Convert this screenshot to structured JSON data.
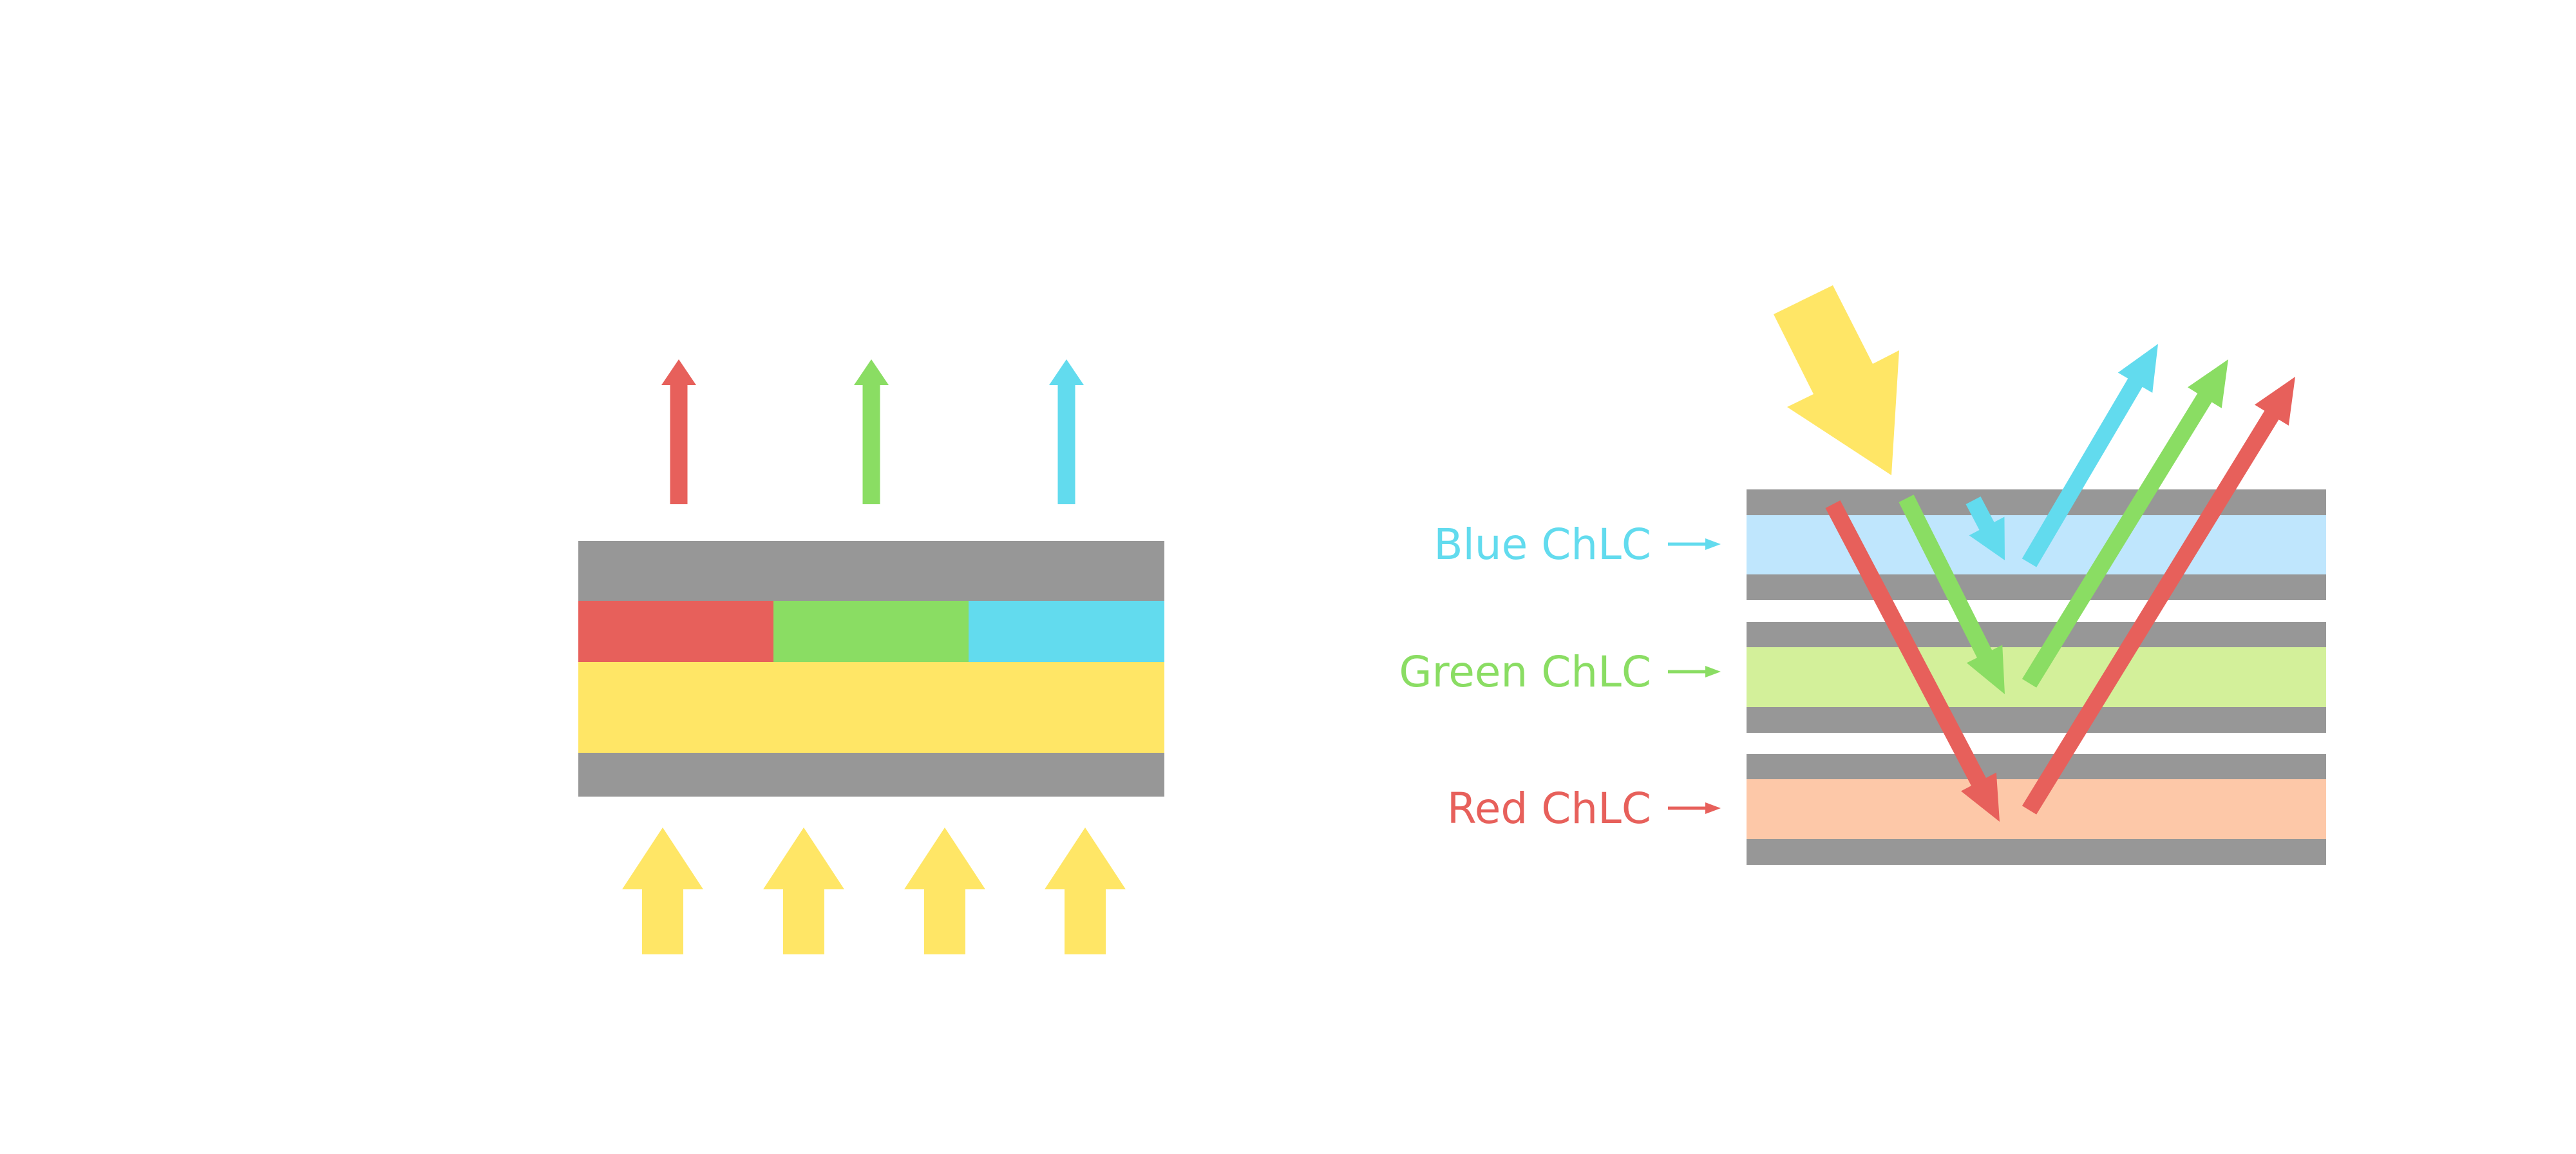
{
  "colors": {
    "gray": "#979797",
    "red": "#E7605B",
    "green": "#8ADD63",
    "cyan": "#62DBEE",
    "yellow": "#FFE666",
    "blue_layer": "#BFE6FD",
    "green_layer": "#D3F09A",
    "red_layer": "#FDC8A8"
  },
  "labels": {
    "blue": "Blue ChLC",
    "green": "Green ChLC",
    "red": "Red ChLC"
  }
}
